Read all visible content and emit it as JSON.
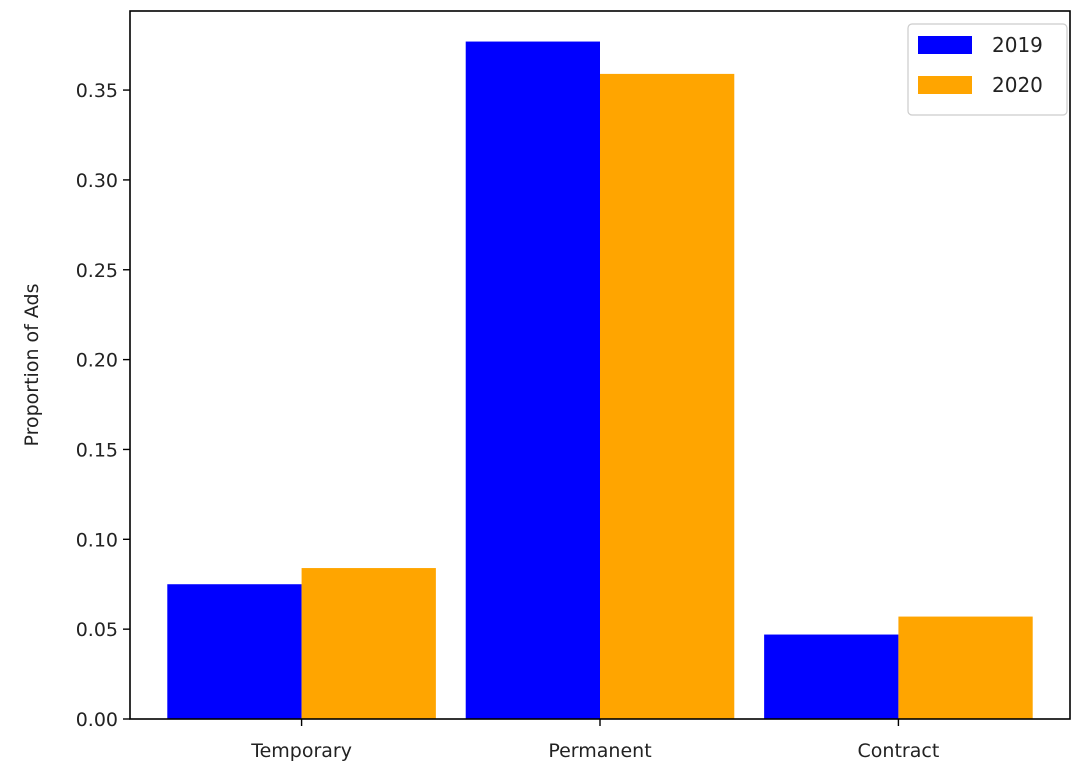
{
  "chart_data": {
    "type": "bar",
    "title": "",
    "xlabel": "",
    "ylabel": "Proportion of Ads",
    "categories": [
      "Temporary",
      "Permanent",
      "Contract"
    ],
    "series": [
      {
        "name": "2019",
        "color": "#0000ff",
        "values": [
          0.075,
          0.377,
          0.047
        ]
      },
      {
        "name": "2020",
        "color": "#ffa500",
        "values": [
          0.084,
          0.359,
          0.057
        ]
      }
    ],
    "ylim": [
      0,
      0.394
    ],
    "yticks": [
      "0.00",
      "0.05",
      "0.10",
      "0.15",
      "0.20",
      "0.25",
      "0.30",
      "0.35"
    ],
    "grid": false,
    "legend_position": "top-right"
  }
}
